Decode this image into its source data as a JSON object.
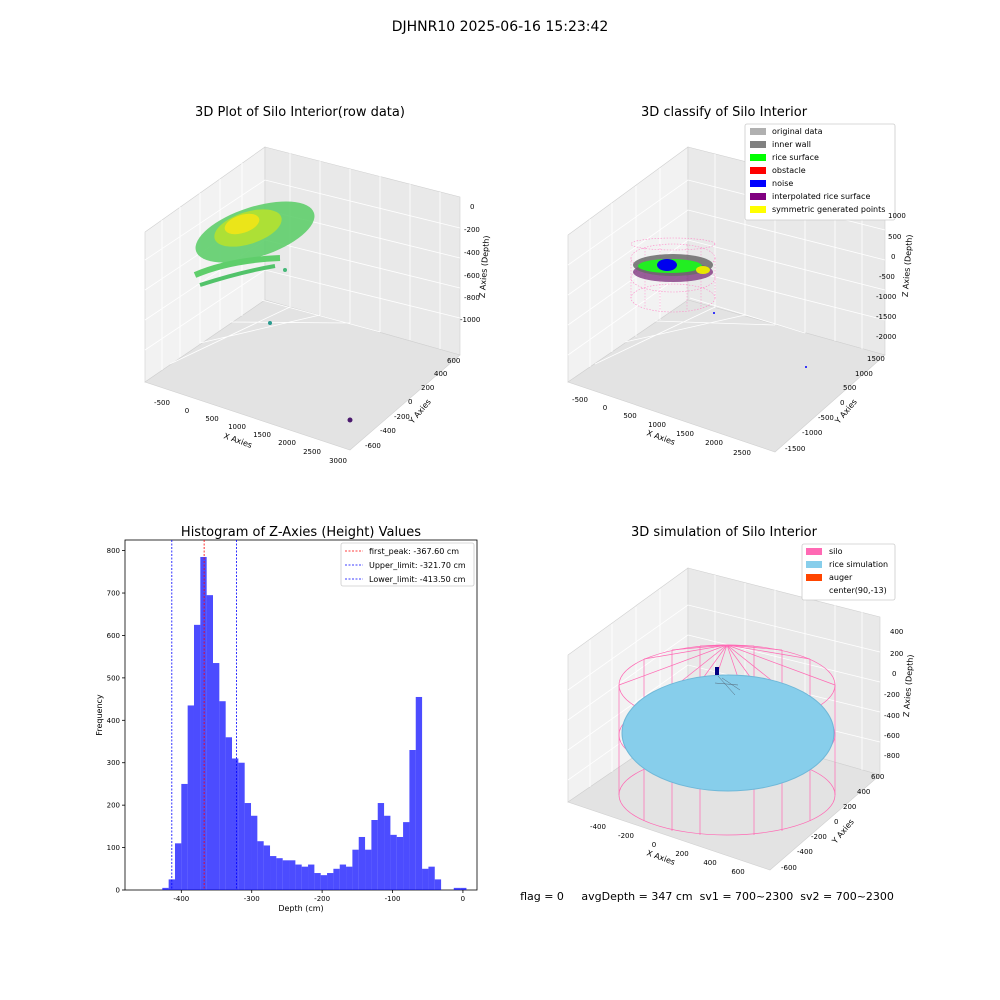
{
  "figure": {
    "suptitle": "DJHNR10 2025-06-16 15:23:42",
    "status_line": "flag = 0     avgDepth = 347 cm  sv1 = 700~2300  sv2 = 700~2300"
  },
  "panels": {
    "raw": {
      "title": "3D Plot of Silo Interior(row data)",
      "xlabel": "X Axies",
      "ylabel": "Y Axies",
      "zlabel": "Z Axies (Depth)",
      "xticks": [
        "-500",
        "0",
        "500",
        "1000",
        "1500",
        "2000",
        "2500",
        "3000"
      ],
      "yticks": [
        "-600",
        "-400",
        "-200",
        "0",
        "200",
        "400",
        "600"
      ],
      "zticks": [
        "0",
        "-200",
        "-400",
        "-600",
        "-800",
        "-1000"
      ]
    },
    "classify": {
      "title": "3D classify of Silo Interior",
      "xlabel": "X Axies",
      "ylabel": "Y Axies",
      "zlabel": "Z Axies (Depth)",
      "xticks": [
        "-500",
        "0",
        "500",
        "1000",
        "1500",
        "2000",
        "2500"
      ],
      "yticks": [
        "-1500",
        "-1000",
        "-500",
        "0",
        "500",
        "1000",
        "1500"
      ],
      "zticks": [
        "1000",
        "500",
        "0",
        "-500",
        "-1000",
        "-1500",
        "-2000"
      ],
      "legend": [
        {
          "label": "original data",
          "color": "#b0b0b0"
        },
        {
          "label": "inner wall",
          "color": "#808080"
        },
        {
          "label": "rice surface",
          "color": "#00ff00"
        },
        {
          "label": "obstacle",
          "color": "#ff0000"
        },
        {
          "label": "noise",
          "color": "#0000ff"
        },
        {
          "label": "interpolated rice surface",
          "color": "#800080"
        },
        {
          "label": "symmetric generated points",
          "color": "#ffff00"
        }
      ]
    },
    "simulation": {
      "title": "3D simulation of Silo Interior",
      "xlabel": "X Axies",
      "ylabel": "Y Axies",
      "zlabel": "Z Axies (Depth)",
      "xticks": [
        "-400",
        "-200",
        "0",
        "200",
        "400",
        "600"
      ],
      "yticks": [
        "-600",
        "-400",
        "-200",
        "0",
        "200",
        "400",
        "600"
      ],
      "zticks": [
        "400",
        "200",
        "0",
        "-200",
        "-400",
        "-600",
        "-800"
      ],
      "legend": [
        {
          "label": "silo",
          "color": "#ff69b4"
        },
        {
          "label": "rice simulation",
          "color": "#87ceeb"
        },
        {
          "label": "auger",
          "color": "#ff4500"
        },
        {
          "label": "center(90,-13)",
          "color": "#ffffff"
        }
      ]
    }
  },
  "chart_data": {
    "type": "bar",
    "title": "Histogram of Z-Axies (Height) Values",
    "xlabel": "Depth (cm)",
    "ylabel": "Frequency",
    "xlim": [
      -480,
      20
    ],
    "ylim": [
      0,
      825
    ],
    "xticks": [
      -400,
      -300,
      -200,
      -100,
      0
    ],
    "yticks": [
      0,
      100,
      200,
      300,
      400,
      500,
      600,
      700,
      800
    ],
    "bar_color": "#0000ff",
    "bin_width": 9,
    "bin_starts": [
      -427,
      -418,
      -409,
      -400,
      -391,
      -382,
      -373,
      -364,
      -355,
      -346,
      -337,
      -328,
      -319,
      -310,
      -301,
      -292,
      -283,
      -274,
      -265,
      -256,
      -247,
      -238,
      -229,
      -220,
      -211,
      -202,
      -193,
      -184,
      -175,
      -166,
      -157,
      -148,
      -139,
      -130,
      -121,
      -112,
      -103,
      -94,
      -85,
      -76,
      -67,
      -58,
      -49,
      -40,
      -31,
      -22,
      -13,
      -4
    ],
    "counts": [
      5,
      25,
      110,
      250,
      435,
      625,
      785,
      695,
      535,
      445,
      360,
      310,
      300,
      205,
      175,
      115,
      105,
      80,
      75,
      70,
      70,
      60,
      55,
      60,
      40,
      35,
      40,
      50,
      60,
      55,
      95,
      125,
      95,
      165,
      205,
      175,
      130,
      125,
      160,
      330,
      455,
      50,
      55,
      25,
      0,
      0,
      5,
      5
    ],
    "lines": [
      {
        "name": "first_peak: -367.60 cm",
        "x": -367.6,
        "color": "#ff0000"
      },
      {
        "name": "Upper_limit: -321.70 cm",
        "x": -321.7,
        "color": "#0000ff"
      },
      {
        "name": "Lower_limit: -413.50 cm",
        "x": -413.5,
        "color": "#0000ff"
      }
    ],
    "legend_position": "upper right"
  }
}
